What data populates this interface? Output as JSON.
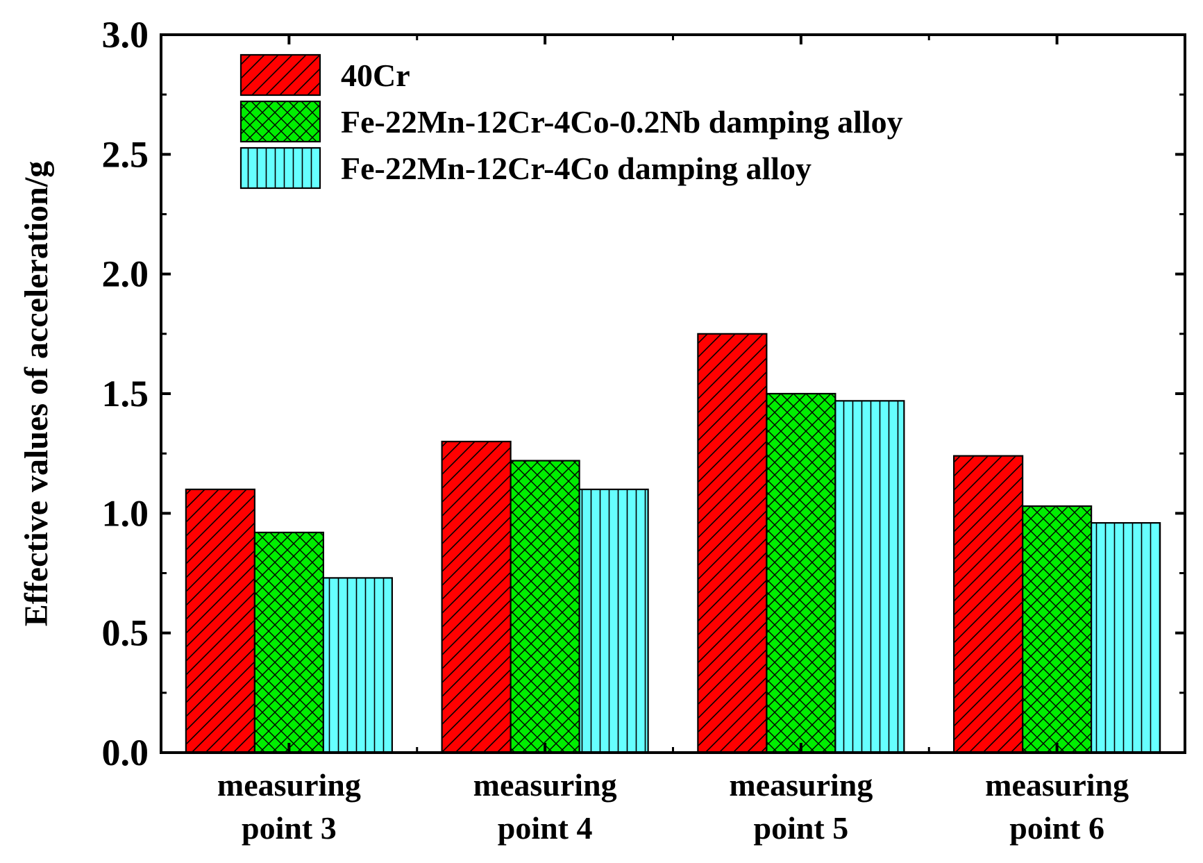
{
  "chart_data": {
    "type": "bar",
    "title": "",
    "xlabel": "",
    "ylabel": "Effective values of acceleration/g",
    "ylim": [
      0,
      3.0
    ],
    "yticks": [
      "0.0",
      "0.5",
      "1.0",
      "1.5",
      "2.0",
      "2.5",
      "3.0"
    ],
    "grid": false,
    "legend_position": "top-left",
    "categories": [
      [
        "measuring",
        "point 3"
      ],
      [
        "measuring",
        "point 4"
      ],
      [
        "measuring",
        "point 5"
      ],
      [
        "measuring",
        "point 6"
      ]
    ],
    "series": [
      {
        "name": "40Cr",
        "color": "#ff0000",
        "pattern": "diagonal",
        "values": [
          1.1,
          1.3,
          1.75,
          1.24
        ]
      },
      {
        "name": "Fe-22Mn-12Cr-4Co-0.2Nb damping alloy",
        "color": "#00ee00",
        "pattern": "crosshatch",
        "values": [
          0.92,
          1.22,
          1.5,
          1.03
        ]
      },
      {
        "name": "Fe-22Mn-12Cr-4Co damping alloy",
        "color": "#66ffff",
        "pattern": "vertical",
        "values": [
          0.73,
          1.1,
          1.47,
          0.96
        ]
      }
    ]
  }
}
